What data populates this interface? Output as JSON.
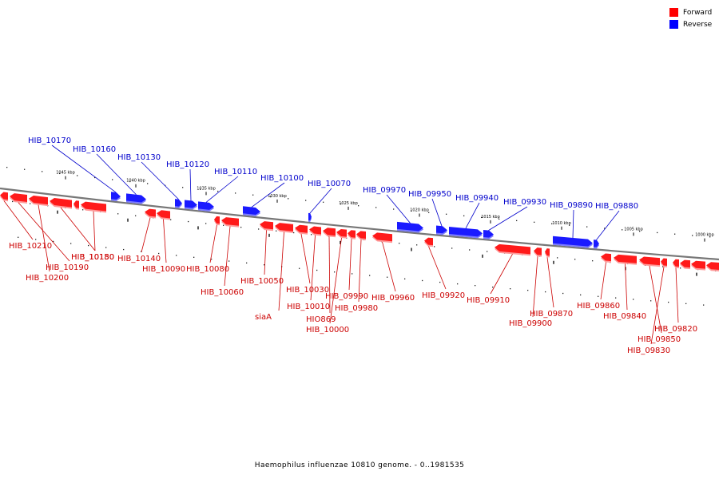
{
  "legend": {
    "forward_label": "Forward",
    "reverse_label": "Reverse",
    "forward_color": "#ff0000",
    "reverse_color": "#0000ff"
  },
  "caption": "Haemophilus influenzae 10810 genome. - 0..1981535",
  "colors": {
    "forward_fill": "#ff1a1a",
    "forward_shadow": "#ff9a9a",
    "reverse_fill": "#1a1aff",
    "reverse_shadow": "#7a7aff",
    "backbone": "#777777",
    "label_forward": "#cc0000",
    "label_reverse": "#0000cc"
  },
  "scale": {
    "unit": "kbp",
    "tick_labels": [
      "1045 kbp",
      "1040 kbp",
      "1035 kbp",
      "1030 kbp",
      "1025 kbp",
      "1020 kbp",
      "1015 kbp",
      "1010 kbp",
      "1005 kbp",
      "1000 kbp"
    ]
  },
  "genes": [
    {
      "label": "HIB_10170",
      "strand": "reverse"
    },
    {
      "label": "HIB_10160",
      "strand": "reverse"
    },
    {
      "label": "HIB_10130",
      "strand": "reverse"
    },
    {
      "label": "HIB_10120",
      "strand": "reverse"
    },
    {
      "label": "HIB_10110",
      "strand": "reverse"
    },
    {
      "label": "HIB_10100",
      "strand": "reverse"
    },
    {
      "label": "HIB_10070",
      "strand": "reverse"
    },
    {
      "label": "HIB_09970",
      "strand": "reverse"
    },
    {
      "label": "HIB_09950",
      "strand": "reverse"
    },
    {
      "label": "HIB_09940",
      "strand": "reverse"
    },
    {
      "label": "HIB_09930",
      "strand": "reverse"
    },
    {
      "label": "HIB_09890",
      "strand": "reverse"
    },
    {
      "label": "HIB_09880",
      "strand": "reverse"
    },
    {
      "label": "HIB_10210",
      "strand": "forward"
    },
    {
      "label": "HIB_10190",
      "strand": "forward"
    },
    {
      "label": "HIB_10200",
      "strand": "forward"
    },
    {
      "label": "HIB_10180",
      "strand": "forward"
    },
    {
      "label": "HIB_10150",
      "strand": "forward"
    },
    {
      "label": "HIB_10140",
      "strand": "forward"
    },
    {
      "label": "HIB_10090",
      "strand": "forward"
    },
    {
      "label": "HIB_10080",
      "strand": "forward"
    },
    {
      "label": "HIB_10060",
      "strand": "forward"
    },
    {
      "label": "HIB_10050",
      "strand": "forward"
    },
    {
      "label": "siaA",
      "strand": "forward"
    },
    {
      "label": "HIB_10030",
      "strand": "forward"
    },
    {
      "label": "HIB_10010",
      "strand": "forward"
    },
    {
      "label": "HIO869",
      "strand": "forward"
    },
    {
      "label": "HIB_10000",
      "strand": "forward"
    },
    {
      "label": "HIB_09990",
      "strand": "forward"
    },
    {
      "label": "HIB_09980",
      "strand": "forward"
    },
    {
      "label": "HIB_09960",
      "strand": "forward"
    },
    {
      "label": "HIB_09920",
      "strand": "forward"
    },
    {
      "label": "HIB_09910",
      "strand": "forward"
    },
    {
      "label": "HIB_09900",
      "strand": "forward"
    },
    {
      "label": "HIB_09870",
      "strand": "forward"
    },
    {
      "label": "HIB_09860",
      "strand": "forward"
    },
    {
      "label": "HIB_09840",
      "strand": "forward"
    },
    {
      "label": "HIB_09850",
      "strand": "forward"
    },
    {
      "label": "HIB_09830",
      "strand": "forward"
    },
    {
      "label": "HIB_09820",
      "strand": "forward"
    }
  ]
}
